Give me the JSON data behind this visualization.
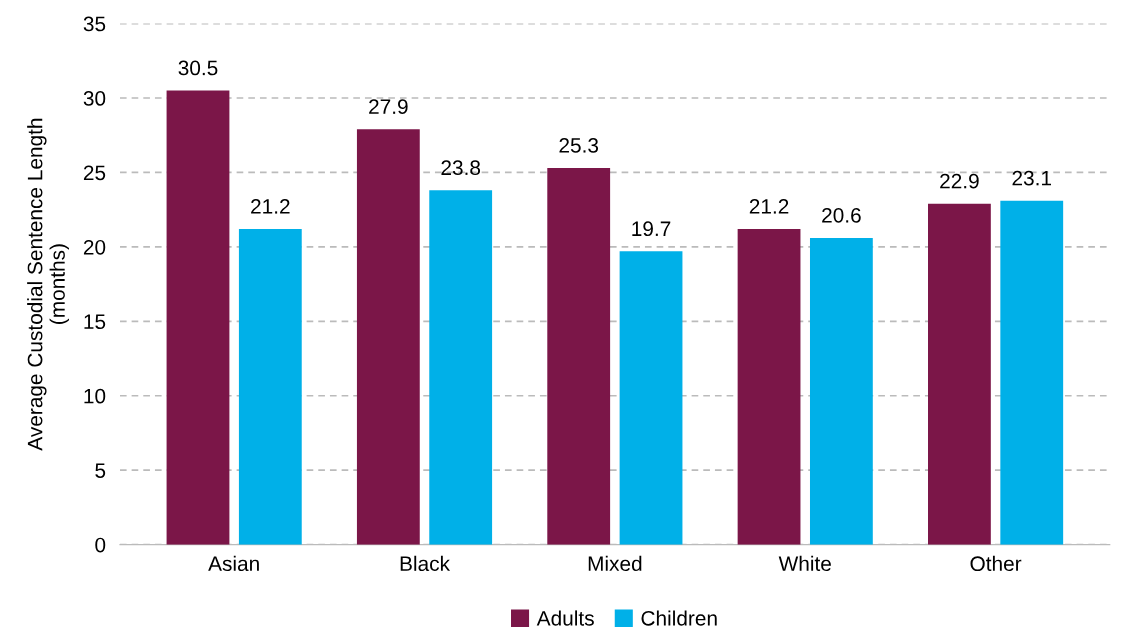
{
  "chart_data": {
    "type": "bar",
    "ylabel": "Average Custodial Sentence Length\n(months)",
    "categories": [
      "Asian",
      "Black",
      "Mixed",
      "White",
      "Other"
    ],
    "series": [
      {
        "name": "Adults",
        "color": "#7b1648",
        "values": [
          30.5,
          27.9,
          25.3,
          21.2,
          22.9
        ]
      },
      {
        "name": "Children",
        "color": "#00b0e8",
        "values": [
          21.2,
          23.8,
          19.7,
          20.6,
          23.1
        ]
      }
    ],
    "ylim": [
      0,
      35
    ],
    "yticks": [
      0,
      5,
      10,
      15,
      20,
      25,
      30,
      35
    ],
    "grid": "y",
    "legend": "bottom",
    "data_labels": true
  }
}
